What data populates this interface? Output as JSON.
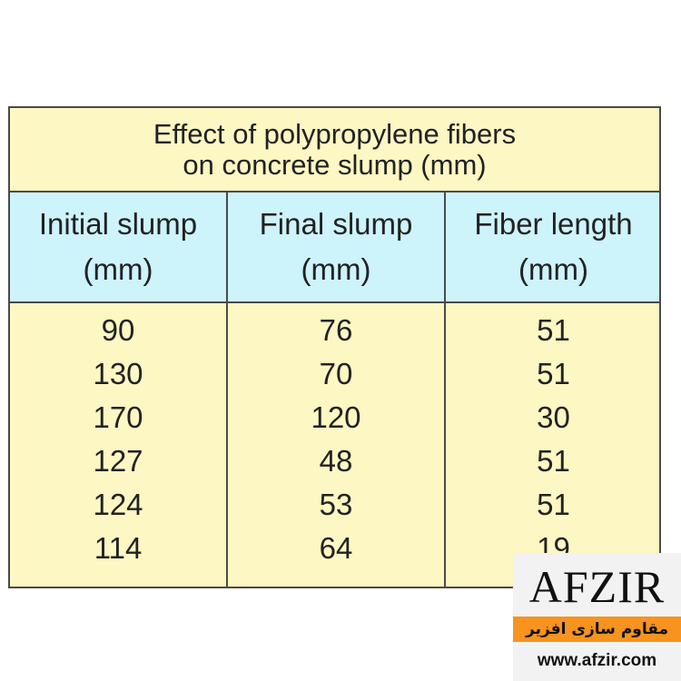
{
  "table": {
    "title_line1": "Effect of polypropylene fibers",
    "title_line2": "on concrete slump (mm)",
    "headers": [
      {
        "line1": "Initial slump",
        "line2": "(mm)"
      },
      {
        "line1": "Final slump",
        "line2": "(mm)"
      },
      {
        "line1": "Fiber length",
        "line2": "(mm)"
      }
    ],
    "rows": [
      [
        "90",
        "76",
        "51"
      ],
      [
        "130",
        "70",
        "51"
      ],
      [
        "170",
        "120",
        "30"
      ],
      [
        "127",
        "48",
        "51"
      ],
      [
        "124",
        "53",
        "51"
      ],
      [
        "114",
        "64",
        "19"
      ]
    ]
  },
  "watermark": {
    "brand": "AFZIR",
    "tagline": "مقاوم سازی افزیر",
    "url": "www.afzir.com",
    "bar_color": "#f7931e"
  },
  "colors": {
    "title_bg": "#fdf7c3",
    "header_bg": "#cdf3fb",
    "body_bg": "#fdf7c3"
  }
}
